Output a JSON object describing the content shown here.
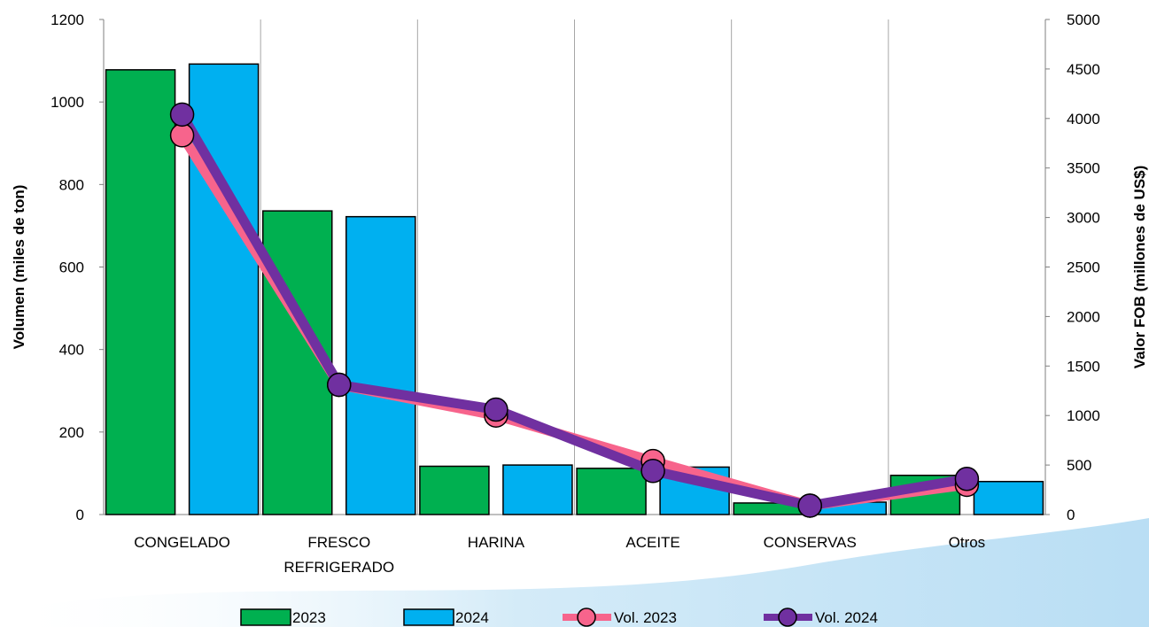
{
  "chart_data": {
    "type": "bar",
    "categories": [
      [
        "CONGELADO"
      ],
      [
        "FRESCO",
        "REFRIGERADO"
      ],
      [
        "HARINA"
      ],
      [
        "ACEITE"
      ],
      [
        "CONSERVAS"
      ],
      [
        "Otros"
      ]
    ],
    "bar_series": [
      {
        "name": "2023",
        "color": "#00b050",
        "values": [
          1078,
          736,
          117,
          112,
          28,
          95
        ]
      },
      {
        "name": "2024",
        "color": "#00b0f0",
        "values": [
          1092,
          722,
          120,
          115,
          30,
          80
        ]
      }
    ],
    "line_series": [
      {
        "name": "Vol. 2023",
        "color": "#f7648c",
        "values": [
          3830,
          1310,
          1000,
          540,
          90,
          300
        ]
      },
      {
        "name": "Vol. 2024",
        "color": "#7030a0",
        "values": [
          4040,
          1310,
          1060,
          440,
          90,
          360
        ]
      }
    ],
    "y_left": {
      "label": "Volumen (miles de ton)",
      "min": 0,
      "max": 1200,
      "ticks": [
        0,
        200,
        400,
        600,
        800,
        1000,
        1200
      ]
    },
    "y_right": {
      "label": "Valor FOB (millones de US$)",
      "min": 0,
      "max": 5000,
      "ticks": [
        0,
        500,
        1000,
        1500,
        2000,
        2500,
        3000,
        3500,
        4000,
        4500,
        5000
      ]
    },
    "grid": "vertical",
    "legend_position": "bottom"
  }
}
